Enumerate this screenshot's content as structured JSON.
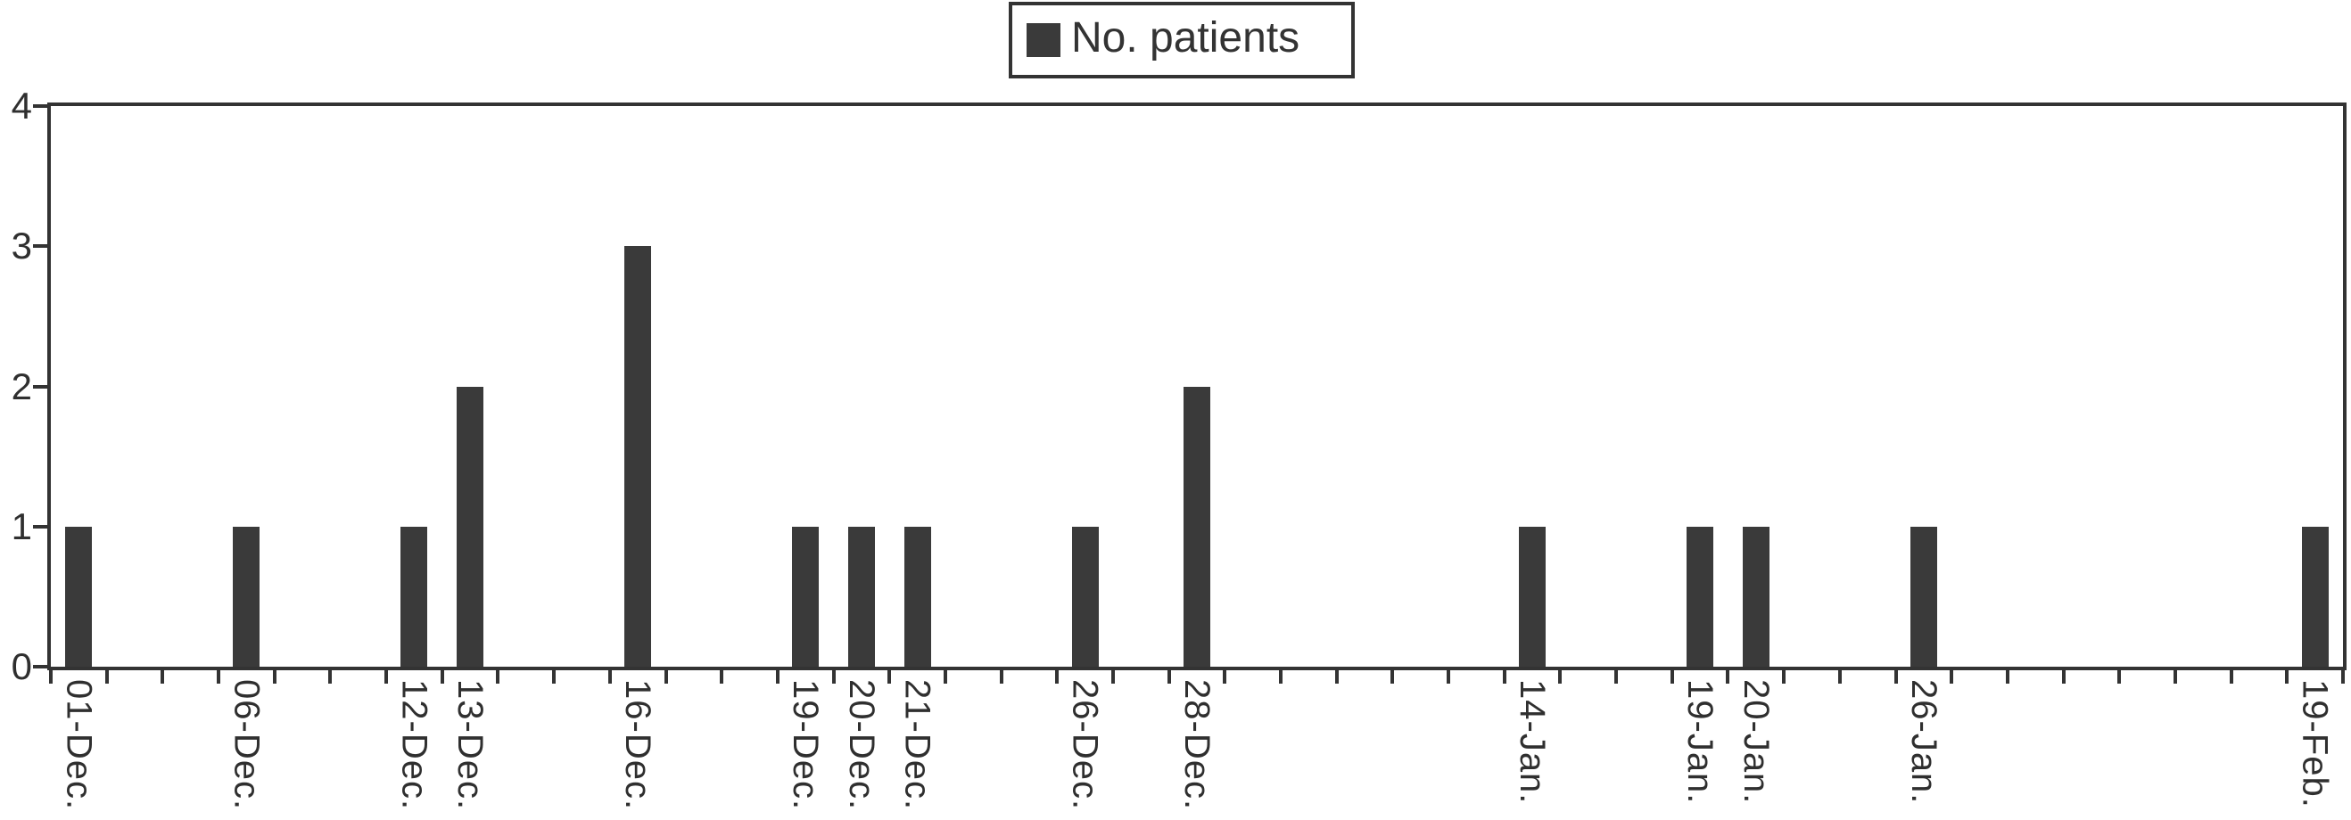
{
  "legend": {
    "label": "No. patients",
    "swatch_color": "#3a3a3a",
    "border_color": "#333333"
  },
  "chart_data": {
    "type": "bar",
    "title": "",
    "xlabel": "",
    "ylabel": "",
    "series_name": "No. patients",
    "bar_color": "#3a3a3a",
    "axis_color": "#333333",
    "text_color": "#2f2f2f",
    "grid": false,
    "legend_position": "top-center",
    "x_axis": {
      "n_slots": 41,
      "label_rotation_deg": 90,
      "tick_at_every_slot_boundary": true
    },
    "y_axis": {
      "min": 0,
      "max": 4,
      "ticks": [
        "0",
        "1",
        "2",
        "3",
        "4"
      ]
    },
    "bars": [
      {
        "slot": 1,
        "label": "01-Dec.",
        "value": 1
      },
      {
        "slot": 4,
        "label": "06-Dec.",
        "value": 1
      },
      {
        "slot": 7,
        "label": "12-Dec.",
        "value": 1
      },
      {
        "slot": 8,
        "label": "13-Dec.",
        "value": 2
      },
      {
        "slot": 11,
        "label": "16-Dec.",
        "value": 3
      },
      {
        "slot": 14,
        "label": "19-Dec.",
        "value": 1
      },
      {
        "slot": 15,
        "label": "20-Dec.",
        "value": 1
      },
      {
        "slot": 16,
        "label": "21-Dec.",
        "value": 1
      },
      {
        "slot": 19,
        "label": "26-Dec.",
        "value": 1
      },
      {
        "slot": 21,
        "label": "28-Dec.",
        "value": 2
      },
      {
        "slot": 27,
        "label": "14-Jan.",
        "value": 1
      },
      {
        "slot": 30,
        "label": "19-Jan.",
        "value": 1
      },
      {
        "slot": 31,
        "label": "20-Jan.",
        "value": 1
      },
      {
        "slot": 34,
        "label": "26-Jan.",
        "value": 1
      },
      {
        "slot": 41,
        "label": "19-Feb.",
        "value": 1
      }
    ]
  }
}
